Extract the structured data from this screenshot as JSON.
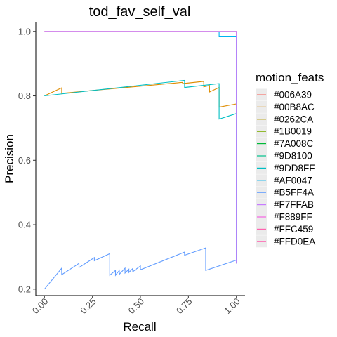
{
  "chart_data": {
    "type": "line",
    "title": "tod_fav_self_val",
    "xlabel": "Recall",
    "ylabel": "Precision",
    "xlim": [
      -0.045,
      1.045
    ],
    "ylim": [
      0.18,
      1.03
    ],
    "x_ticks": [
      0.0,
      0.25,
      0.5,
      0.75,
      1.0
    ],
    "x_tick_labels": [
      "0.00",
      "0.25",
      "0.50",
      "0.75",
      "1.00"
    ],
    "y_ticks": [
      0.2,
      0.4,
      0.6,
      0.8,
      1.0
    ],
    "y_tick_labels": [
      "0.2",
      "0.4",
      "0.6",
      "0.8",
      "1.0"
    ],
    "grid": false,
    "legend": {
      "title": "motion_feats",
      "position": "right",
      "entries": [
        {
          "label": "#006A39",
          "color": "#F8766D"
        },
        {
          "label": "#00B8AC",
          "color": "#DE8C00"
        },
        {
          "label": "#0262CA",
          "color": "#B79F00"
        },
        {
          "label": "#1B0019",
          "color": "#7CAE00"
        },
        {
          "label": "#7A008C",
          "color": "#00BA38"
        },
        {
          "label": "#9D8100",
          "color": "#00C08B"
        },
        {
          "label": "#9DD8FF",
          "color": "#00BFC4"
        },
        {
          "label": "#AF0047",
          "color": "#00B4F0"
        },
        {
          "label": "#B5FF4A",
          "color": "#619CFF"
        },
        {
          "label": "#F7FFAB",
          "color": "#C77CFF"
        },
        {
          "label": "#F889FF",
          "color": "#F564E3"
        },
        {
          "label": "#FFC459",
          "color": "#FF64B0"
        },
        {
          "label": "#FFD0EA",
          "color": "#FF64B0"
        }
      ]
    },
    "series": [
      {
        "color": "#F8766D",
        "x": [
          0.0,
          1.0,
          1.0
        ],
        "y": [
          1.0,
          1.0,
          0.28
        ]
      },
      {
        "color": "#DE8C00",
        "x": [
          0.0,
          0.09,
          0.09,
          0.72,
          0.72,
          0.83,
          0.83,
          0.86,
          0.86,
          0.91,
          0.91,
          1.0,
          1.0
        ],
        "y": [
          0.8,
          0.825,
          0.808,
          0.842,
          0.838,
          0.845,
          0.828,
          0.832,
          0.812,
          0.826,
          0.765,
          0.775,
          0.28
        ]
      },
      {
        "color": "#00BFC4",
        "x": [
          0.0,
          0.73,
          0.73,
          0.91,
          0.91,
          1.0,
          1.0
        ],
        "y": [
          0.8,
          0.848,
          0.826,
          0.838,
          0.728,
          0.745,
          0.28
        ]
      },
      {
        "color": "#00B4F0",
        "x": [
          0.91,
          0.91,
          1.0,
          1.0
        ],
        "y": [
          1.0,
          0.985,
          0.985,
          0.28
        ]
      },
      {
        "color": "#619CFF",
        "x": [
          0.0,
          0.09,
          0.09,
          0.16,
          0.18,
          0.18,
          0.26,
          0.26,
          0.34,
          0.34,
          0.37,
          0.37,
          0.39,
          0.39,
          0.42,
          0.42,
          0.44,
          0.44,
          0.46,
          0.46,
          0.5,
          0.5,
          0.73,
          0.73,
          0.84,
          0.84,
          1.0,
          1.0
        ],
        "y": [
          0.2,
          0.265,
          0.245,
          0.272,
          0.28,
          0.267,
          0.298,
          0.288,
          0.31,
          0.243,
          0.258,
          0.243,
          0.258,
          0.246,
          0.265,
          0.25,
          0.262,
          0.252,
          0.264,
          0.254,
          0.272,
          0.26,
          0.315,
          0.305,
          0.328,
          0.258,
          0.29,
          0.28
        ]
      },
      {
        "color": "#C77CFF",
        "x": [
          0.0,
          1.0,
          1.0
        ],
        "y": [
          1.0,
          1.0,
          0.28
        ]
      }
    ]
  }
}
